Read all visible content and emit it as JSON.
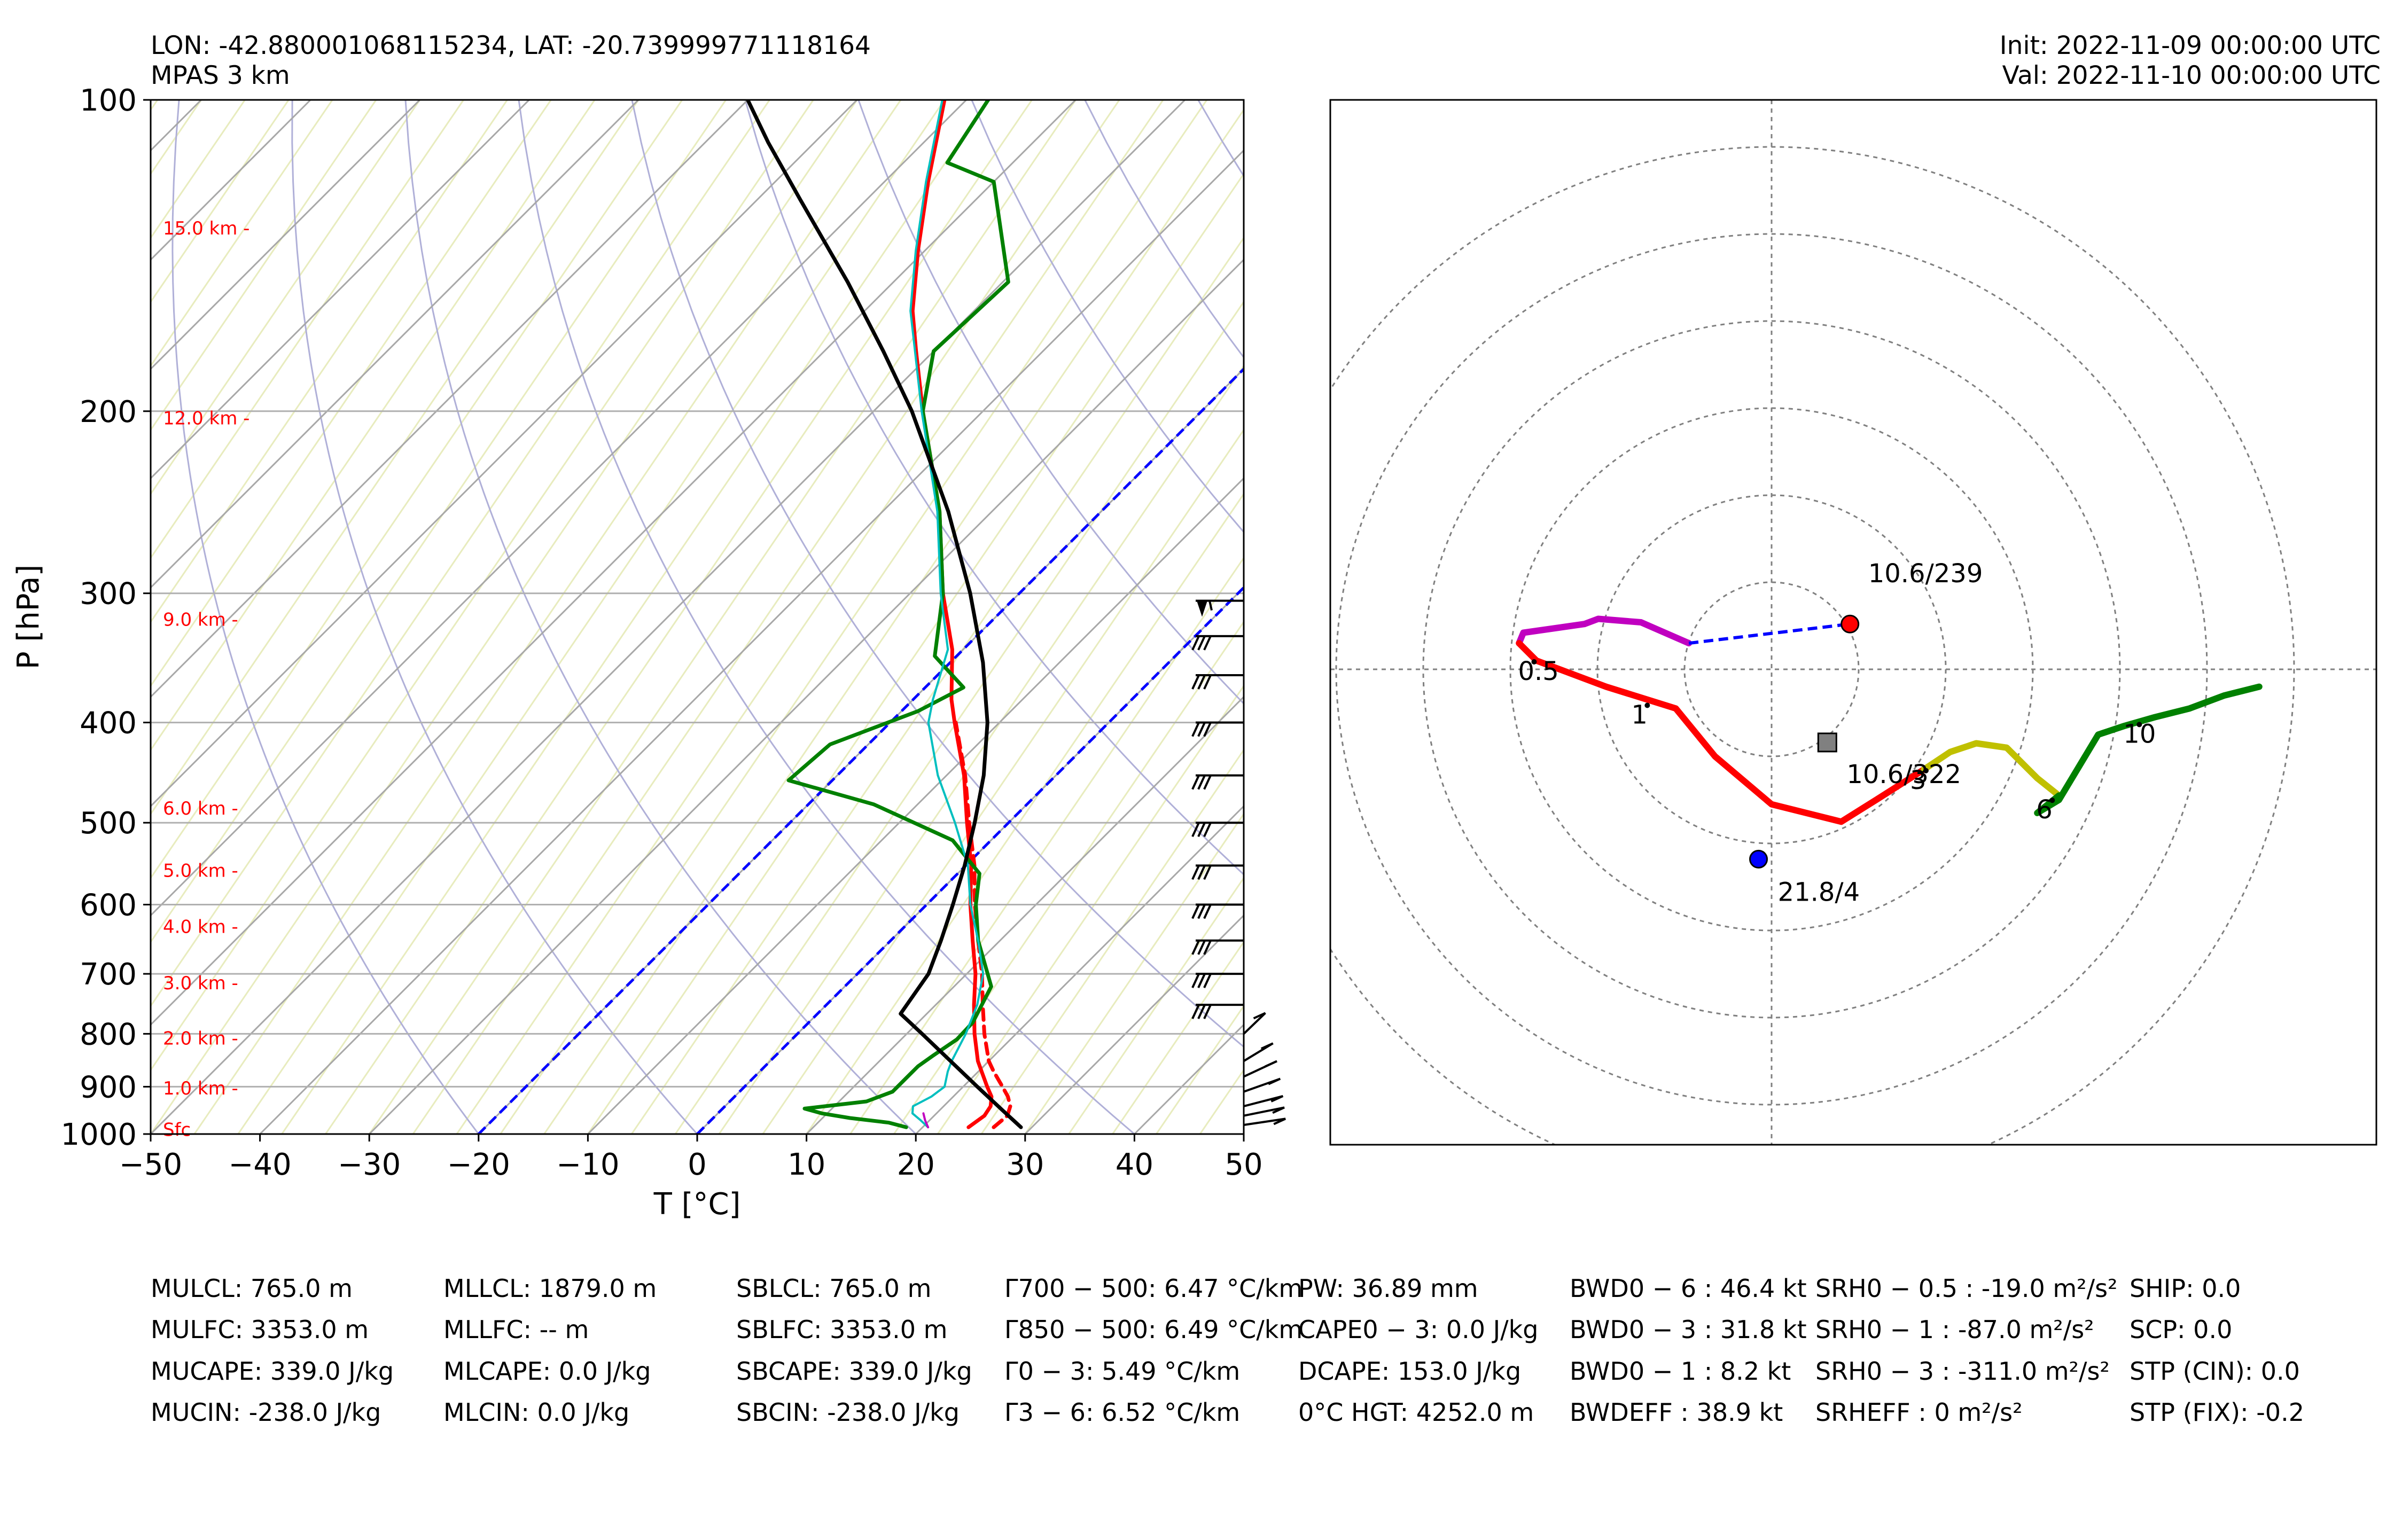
{
  "header": {
    "location": "LON: -42.880001068115234, LAT: -20.739999771118164",
    "model": "MPAS 3 km",
    "init": "Init: 2022-11-09 00:00:00 UTC",
    "valid": "Val: 2022-11-10 00:00:00 UTC"
  },
  "colors": {
    "temperature": "#ff0000",
    "dewpoint": "#008000",
    "virtual_temperature_dashed": "#ff0000",
    "wetbulb": "#00bfbf",
    "parcel": "#000000",
    "height_labels": "#ff0000",
    "isotherm_0_dashed": "#0000ff",
    "dry_adiabats": "#b0b0d8",
    "mixing_ratio_lines": "#e8ecbe",
    "hodo_0_0.5": "#c000c0",
    "hodo_0.5_3": "#ff0000",
    "hodo_3_6": "#c0c000",
    "hodo_6_10": "#008000",
    "storm_motion_right": "#ff0000",
    "storm_motion_left": "#0000ff",
    "mean_wind_marker": "#808080"
  },
  "chart_data": [
    {
      "type": "line",
      "name": "skew-T log-P sounding",
      "title": "",
      "xlabel": "T [°C]",
      "ylabel": "P [hPa]",
      "xlim": [
        -50,
        50
      ],
      "ylim": [
        1000,
        100
      ],
      "x_ticks": [
        -50,
        -40,
        -30,
        -20,
        -10,
        0,
        10,
        20,
        30,
        40,
        50
      ],
      "x_tick_labels": [
        "−50",
        "−40",
        "−30",
        "−20",
        "−10",
        "0",
        "10",
        "20",
        "30",
        "40",
        "50"
      ],
      "y_ticks": [
        100,
        200,
        300,
        400,
        500,
        600,
        700,
        800,
        900,
        1000
      ],
      "y_tick_labels": [
        "100",
        "200",
        "300",
        "400",
        "500",
        "600",
        "700",
        "800",
        "900",
        "1000"
      ],
      "height_labels": [
        {
          "label": "15.0 km -",
          "p": 133
        },
        {
          "label": "12.0 km -",
          "p": 203
        },
        {
          "label": "9.0 km -",
          "p": 318
        },
        {
          "label": "6.0 km -",
          "p": 484
        },
        {
          "label": "5.0 km -",
          "p": 556
        },
        {
          "label": "4.0 km -",
          "p": 630
        },
        {
          "label": "3.0 km -",
          "p": 714
        },
        {
          "label": "2.0 km -",
          "p": 808
        },
        {
          "label": "1.0 km -",
          "p": 903
        },
        {
          "label": "Sfc",
          "p": 990
        }
      ],
      "series": [
        {
          "name": "Temperature",
          "color": "#ff0000",
          "style": "solid",
          "p": [
            985,
            960,
            940,
            920,
            900,
            870,
            850,
            800,
            750,
            700,
            650,
            600,
            550,
            500,
            450,
            400,
            380,
            340,
            300,
            250,
            200,
            175,
            160,
            140,
            120,
            100
          ],
          "t": [
            24.2,
            24.6,
            24.3,
            23.5,
            22.2,
            20.3,
            19.0,
            16.2,
            13.5,
            10.8,
            7.5,
            4.0,
            0.5,
            -3.8,
            -8.4,
            -14.1,
            -16.5,
            -21.0,
            -27.0,
            -34.8,
            -45.5,
            -51.6,
            -55.6,
            -60.6,
            -66.0,
            -72.0
          ]
        },
        {
          "name": "Virtual temperature",
          "color": "#ff0000",
          "style": "dashed",
          "p": [
            985,
            960,
            940,
            920,
            900,
            870,
            850,
            800,
            750,
            700,
            650,
            600,
            550,
            500,
            450,
            400
          ],
          "t": [
            26.5,
            26.7,
            26.1,
            25.0,
            23.6,
            21.4,
            20.0,
            17.1,
            14.3,
            11.4,
            8.0,
            4.4,
            0.8,
            -3.6,
            -8.3,
            -14.0
          ]
        },
        {
          "name": "Dewpoint",
          "color": "#008000",
          "style": "solid",
          "p": [
            985,
            975,
            965,
            955,
            945,
            930,
            910,
            880,
            860,
            840,
            810,
            780,
            720,
            650,
            600,
            560,
            520,
            480,
            455,
            420,
            390,
            370,
            345,
            300,
            250,
            200,
            175,
            150,
            120,
            115,
            100
          ],
          "t": [
            18.5,
            16.5,
            12.5,
            9.5,
            7.5,
            12.5,
            14.0,
            14.0,
            14.0,
            14.4,
            15.1,
            15.0,
            13.4,
            8.0,
            4.5,
            2.0,
            -3.5,
            -14.0,
            -24.0,
            -23.5,
            -18.5,
            -16.5,
            -22.0,
            -27.0,
            -34.8,
            -45.5,
            -50.0,
            -49.5,
            -60.0,
            -66.0,
            -68.0
          ]
        },
        {
          "name": "Wet-bulb temperature",
          "color": "#00bfbf",
          "style": "solid",
          "p": [
            985,
            970,
            955,
            940,
            920,
            900,
            870,
            850,
            800,
            750,
            700,
            650,
            600,
            550,
            500,
            450,
            400,
            380,
            340,
            300,
            250,
            200,
            175,
            160,
            140,
            120,
            100
          ],
          "t": [
            20.5,
            19.2,
            17.8,
            17.2,
            18.0,
            18.3,
            17.2,
            16.6,
            15.4,
            13.8,
            11.5,
            8.0,
            4.0,
            0.2,
            -4.9,
            -10.8,
            -16.5,
            -18.2,
            -21.4,
            -27.2,
            -35.0,
            -45.6,
            -51.7,
            -55.8,
            -60.8,
            -66.2,
            -72.2
          ]
        },
        {
          "name": "Most-unstable parcel",
          "color": "#000000",
          "style": "solid",
          "p": [
            985,
            950,
            900,
            850,
            800,
            765,
            700,
            650,
            600,
            550,
            500,
            450,
            400,
            350,
            300,
            250,
            200,
            175,
            150,
            125,
            110,
            100
          ],
          "t": [
            29.0,
            25.9,
            21.3,
            16.5,
            11.4,
            7.6,
            6.5,
            4.6,
            2.4,
            -0.1,
            -3.1,
            -6.6,
            -11.1,
            -17.0,
            -24.5,
            -34.0,
            -46.5,
            -54.6,
            -64.2,
            -76.0,
            -84.2,
            -90.0
          ]
        },
        {
          "name": "Trace",
          "color": "#c000c0",
          "style": "solid",
          "p": [
            985,
            970,
            955
          ],
          "t": [
            20.5,
            19.6,
            18.8
          ]
        }
      ],
      "isotherm_0_dashed": [
        0,
        -20
      ],
      "wind_barbs": [
        {
          "p": 305,
          "flag": true
        },
        {
          "p": 330
        },
        {
          "p": 360
        },
        {
          "p": 400
        },
        {
          "p": 450
        },
        {
          "p": 500
        },
        {
          "p": 550
        },
        {
          "p": 600
        },
        {
          "p": 650
        },
        {
          "p": 700
        },
        {
          "p": 750
        },
        {
          "p": 800
        },
        {
          "p": 850
        },
        {
          "p": 880
        },
        {
          "p": 910
        },
        {
          "p": 940
        },
        {
          "p": 960
        },
        {
          "p": 980
        }
      ]
    },
    {
      "type": "line",
      "name": "hodograph",
      "title": "",
      "units": "kt",
      "ring_spacing": 10,
      "rings": [
        10,
        20,
        30,
        40,
        50,
        60
      ],
      "lim": [
        -50,
        70,
        -54,
        65
      ],
      "segments": [
        {
          "name": "0-0.5 km",
          "color": "#c000c0",
          "style": "solid",
          "u": [
            -9.5,
            -15.0,
            -19.9,
            -21.5,
            -28.5,
            -29.0
          ],
          "v": [
            3.0,
            5.4,
            5.8,
            5.2,
            4.2,
            3.0
          ]
        },
        {
          "name": "0.5-3 km",
          "color": "#ff0000",
          "style": "solid",
          "u": [
            -29.0,
            -27.0,
            -19.0,
            -11.0,
            -6.5,
            0.0,
            8.0,
            12.0,
            17.5
          ],
          "v": [
            3.0,
            1.0,
            -2.0,
            -4.5,
            -10.0,
            -15.5,
            -17.5,
            -15.0,
            -11.5
          ]
        },
        {
          "name": "3-6 km",
          "color": "#c0c000",
          "style": "solid",
          "u": [
            17.5,
            20.5,
            23.5,
            27.0,
            30.5,
            33.0
          ],
          "v": [
            -11.5,
            -9.5,
            -8.5,
            -9.0,
            -12.5,
            -14.5
          ]
        },
        {
          "name": "6-10 km",
          "color": "#008000",
          "style": "solid",
          "u": [
            33.0,
            30.5,
            33.0,
            37.5,
            40.5,
            44.0,
            48.0,
            52.0,
            56.0
          ],
          "v": [
            -14.5,
            -16.5,
            -15.0,
            -7.5,
            -6.5,
            -5.5,
            -4.5,
            -3.0,
            -2.0
          ]
        }
      ],
      "storm_motion_link": {
        "color": "#0000ff",
        "style": "dashed",
        "u": [
          -9.5,
          9.0
        ],
        "v": [
          3.0,
          5.2
        ]
      },
      "markers": [
        {
          "name": "right-mover",
          "u": 9.0,
          "v": 5.2,
          "color": "#ff0000",
          "shape": "circle",
          "label": "10.6/239"
        },
        {
          "name": "mean-wind",
          "u": 6.4,
          "v": -8.4,
          "color": "#808080",
          "shape": "square",
          "label": "10.6/322"
        },
        {
          "name": "left-mover",
          "u": -1.5,
          "v": -21.8,
          "color": "#0000ff",
          "shape": "circle",
          "label": "21.8/4"
        }
      ],
      "height_labels": [
        {
          "label": "0.5",
          "u": -28.5,
          "v": 0.0
        },
        {
          "label": "1",
          "u": -15.5,
          "v": -5.0
        },
        {
          "label": "3",
          "u": 16.5,
          "v": -12.5
        },
        {
          "label": "6",
          "u": 31.0,
          "v": -15.9
        },
        {
          "label": "10",
          "u": 41.0,
          "v": -7.2
        }
      ]
    }
  ],
  "indices": [
    [
      "MULCL: 765.0 m",
      "MULFC: 3353.0 m",
      "MUCAPE: 339.0 J/kg",
      "MUCIN: -238.0 J/kg"
    ],
    [
      "MLLCL: 1879.0 m",
      "MLLFC: -- m",
      "MLCAPE: 0.0 J/kg",
      "MLCIN: 0.0 J/kg"
    ],
    [
      "SBLCL: 765.0 m",
      "SBLFC: 3353.0 m",
      "SBCAPE: 339.0 J/kg",
      "SBCIN: -238.0 J/kg"
    ],
    [
      "Γ700 − 500: 6.47 °C/km",
      "Γ850 − 500: 6.49 °C/km",
      "Γ0 − 3: 5.49 °C/km",
      "Γ3 − 6: 6.52 °C/km"
    ],
    [
      "PW: 36.89 mm",
      "CAPE0 − 3: 0.0 J/kg",
      "DCAPE: 153.0 J/kg",
      "0°C HGT: 4252.0 m"
    ],
    [
      "BWD0 − 6 : 46.4 kt",
      "BWD0 − 3 : 31.8 kt",
      "BWD0 − 1 : 8.2 kt",
      "BWDEFF : 38.9 kt"
    ],
    [
      "SRH0 − 0.5 : -19.0 m²/s²",
      "SRH0 − 1 : -87.0 m²/s²",
      "SRH0 − 3 : -311.0 m²/s²",
      "SRHEFF : 0 m²/s²"
    ],
    [
      "SHIP: 0.0",
      "SCP: 0.0",
      "STP (CIN): 0.0",
      "STP (FIX): -0.2"
    ]
  ]
}
